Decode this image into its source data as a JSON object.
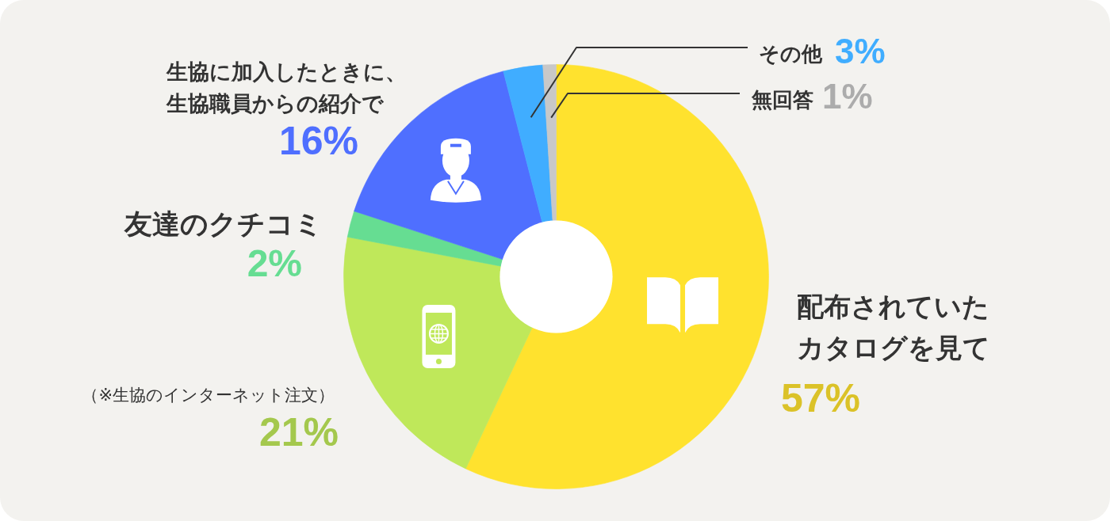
{
  "chart_data": {
    "type": "donut",
    "categories": [
      "配布されていたカタログを見て",
      "（※生協のインターネット注文）",
      "友達のクチコミ",
      "生協に加入したときに、生協職員からの紹介で",
      "その他",
      "無回答"
    ],
    "values": [
      57,
      21,
      2,
      16,
      3,
      1
    ],
    "colors": [
      "#ffe22e",
      "#bfe85a",
      "#66dd92",
      "#4f6fff",
      "#40adff",
      "#c8c8c8"
    ],
    "value_labels": [
      "57%",
      "21%",
      "2%",
      "16%",
      "3%",
      "1%"
    ]
  }
}
